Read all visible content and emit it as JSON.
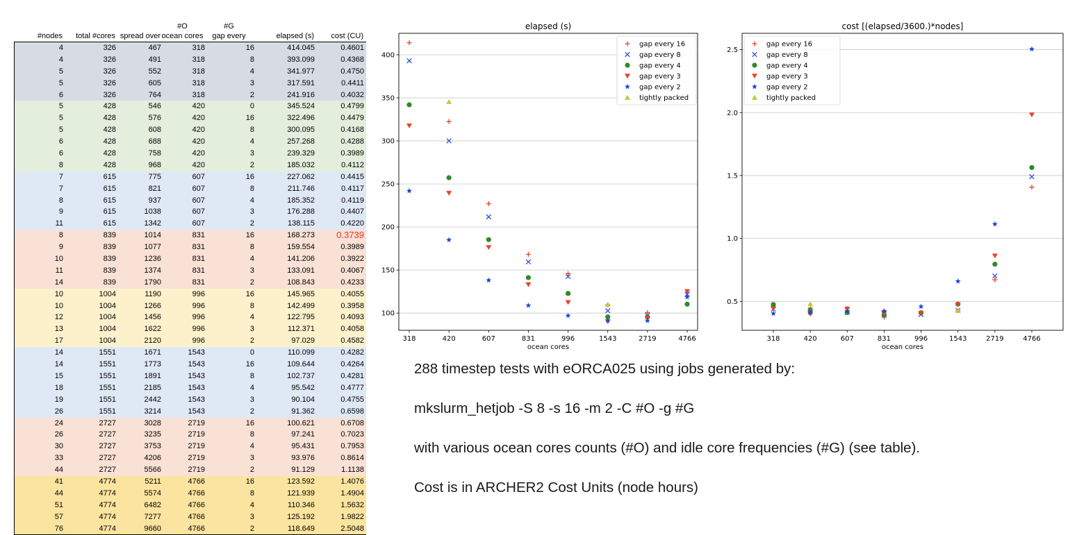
{
  "table": {
    "headers": [
      {
        "top": "",
        "bottom": "#nodes"
      },
      {
        "top": "",
        "bottom": "total #cores"
      },
      {
        "top": "",
        "bottom": "spread over"
      },
      {
        "top": "#O",
        "bottom": "ocean cores"
      },
      {
        "top": "#G",
        "bottom": "gap every"
      },
      {
        "top": "",
        "bottom": "elapsed (s)"
      },
      {
        "top": "",
        "bottom": "cost (CU)"
      }
    ],
    "group_colors": [
      "#d6dbe4",
      "#e3eedd",
      "#dfe9f5",
      "#f9e1d6",
      "#fdf1cc",
      "#dfe9f5",
      "#f9e1d6",
      "#fbe49f"
    ],
    "highlight_color": "#ea3323",
    "rows": [
      {
        "g": 0,
        "c": [
          "4",
          "326",
          "467",
          "318",
          "16",
          "414.045",
          "0.4601"
        ]
      },
      {
        "g": 0,
        "c": [
          "4",
          "326",
          "491",
          "318",
          "8",
          "393.099",
          "0.4368"
        ]
      },
      {
        "g": 0,
        "c": [
          "5",
          "326",
          "552",
          "318",
          "4",
          "341.977",
          "0.4750"
        ]
      },
      {
        "g": 0,
        "c": [
          "5",
          "326",
          "605",
          "318",
          "3",
          "317.591",
          "0.4411"
        ]
      },
      {
        "g": 0,
        "c": [
          "6",
          "326",
          "764",
          "318",
          "2",
          "241.916",
          "0.4032"
        ]
      },
      {
        "g": 1,
        "c": [
          "5",
          "428",
          "546",
          "420",
          "0",
          "345.524",
          "0.4799"
        ]
      },
      {
        "g": 1,
        "c": [
          "5",
          "428",
          "576",
          "420",
          "16",
          "322.496",
          "0.4479"
        ]
      },
      {
        "g": 1,
        "c": [
          "5",
          "428",
          "608",
          "420",
          "8",
          "300.095",
          "0.4168"
        ]
      },
      {
        "g": 1,
        "c": [
          "6",
          "428",
          "688",
          "420",
          "4",
          "257.268",
          "0.4288"
        ]
      },
      {
        "g": 1,
        "c": [
          "6",
          "428",
          "758",
          "420",
          "3",
          "239.329",
          "0.3989"
        ]
      },
      {
        "g": 1,
        "c": [
          "8",
          "428",
          "968",
          "420",
          "2",
          "185.032",
          "0.4112"
        ]
      },
      {
        "g": 2,
        "c": [
          "7",
          "615",
          "775",
          "607",
          "16",
          "227.062",
          "0.4415"
        ]
      },
      {
        "g": 2,
        "c": [
          "7",
          "615",
          "821",
          "607",
          "8",
          "211.746",
          "0.4117"
        ]
      },
      {
        "g": 2,
        "c": [
          "8",
          "615",
          "937",
          "607",
          "4",
          "185.352",
          "0.4119"
        ]
      },
      {
        "g": 2,
        "c": [
          "9",
          "615",
          "1038",
          "607",
          "3",
          "176.288",
          "0.4407"
        ]
      },
      {
        "g": 2,
        "c": [
          "11",
          "615",
          "1342",
          "607",
          "2",
          "138.115",
          "0.4220"
        ]
      },
      {
        "g": 3,
        "c": [
          "8",
          "839",
          "1014",
          "831",
          "16",
          "168.273",
          "0.3739"
        ],
        "hl": true
      },
      {
        "g": 3,
        "c": [
          "9",
          "839",
          "1077",
          "831",
          "8",
          "159.554",
          "0.3989"
        ]
      },
      {
        "g": 3,
        "c": [
          "10",
          "839",
          "1236",
          "831",
          "4",
          "141.206",
          "0.3922"
        ]
      },
      {
        "g": 3,
        "c": [
          "11",
          "839",
          "1374",
          "831",
          "3",
          "133.091",
          "0.4067"
        ]
      },
      {
        "g": 3,
        "c": [
          "14",
          "839",
          "1790",
          "831",
          "2",
          "108.843",
          "0.4233"
        ]
      },
      {
        "g": 4,
        "c": [
          "10",
          "1004",
          "1190",
          "996",
          "16",
          "145.965",
          "0.4055"
        ]
      },
      {
        "g": 4,
        "c": [
          "10",
          "1004",
          "1266",
          "996",
          "8",
          "142.499",
          "0.3958"
        ]
      },
      {
        "g": 4,
        "c": [
          "12",
          "1004",
          "1456",
          "996",
          "4",
          "122.795",
          "0.4093"
        ]
      },
      {
        "g": 4,
        "c": [
          "13",
          "1004",
          "1622",
          "996",
          "3",
          "112.371",
          "0.4058"
        ]
      },
      {
        "g": 4,
        "c": [
          "17",
          "1004",
          "2120",
          "996",
          "2",
          "97.029",
          "0.4582"
        ]
      },
      {
        "g": 5,
        "c": [
          "14",
          "1551",
          "1671",
          "1543",
          "0",
          "110.099",
          "0.4282"
        ]
      },
      {
        "g": 5,
        "c": [
          "14",
          "1551",
          "1773",
          "1543",
          "16",
          "109.644",
          "0.4264"
        ]
      },
      {
        "g": 5,
        "c": [
          "15",
          "1551",
          "1891",
          "1543",
          "8",
          "102.737",
          "0.4281"
        ]
      },
      {
        "g": 5,
        "c": [
          "18",
          "1551",
          "2185",
          "1543",
          "4",
          "95.542",
          "0.4777"
        ]
      },
      {
        "g": 5,
        "c": [
          "19",
          "1551",
          "2442",
          "1543",
          "3",
          "90.104",
          "0.4755"
        ]
      },
      {
        "g": 5,
        "c": [
          "26",
          "1551",
          "3214",
          "1543",
          "2",
          "91.362",
          "0.6598"
        ]
      },
      {
        "g": 6,
        "c": [
          "24",
          "2727",
          "3028",
          "2719",
          "16",
          "100.621",
          "0.6708"
        ]
      },
      {
        "g": 6,
        "c": [
          "26",
          "2727",
          "3235",
          "2719",
          "8",
          "97.241",
          "0.7023"
        ]
      },
      {
        "g": 6,
        "c": [
          "30",
          "2727",
          "3753",
          "2719",
          "4",
          "95.431",
          "0.7953"
        ]
      },
      {
        "g": 6,
        "c": [
          "33",
          "2727",
          "4206",
          "2719",
          "3",
          "93.976",
          "0.8614"
        ]
      },
      {
        "g": 6,
        "c": [
          "44",
          "2727",
          "5566",
          "2719",
          "2",
          "91.129",
          "1.1138"
        ]
      },
      {
        "g": 7,
        "c": [
          "41",
          "4774",
          "5211",
          "4766",
          "16",
          "123.592",
          "1.4076"
        ]
      },
      {
        "g": 7,
        "c": [
          "44",
          "4774",
          "5574",
          "4766",
          "8",
          "121.939",
          "1.4904"
        ]
      },
      {
        "g": 7,
        "c": [
          "51",
          "4774",
          "6482",
          "4766",
          "4",
          "110.346",
          "1.5632"
        ]
      },
      {
        "g": 7,
        "c": [
          "57",
          "4774",
          "7277",
          "4766",
          "3",
          "125.192",
          "1.9822"
        ]
      },
      {
        "g": 7,
        "c": [
          "76",
          "4774",
          "9660",
          "4766",
          "2",
          "118.649",
          "2.5048"
        ]
      }
    ]
  },
  "chart_data": [
    {
      "type": "scatter",
      "title": "elapsed (s)",
      "xlabel": "ocean cores",
      "ylabel": "",
      "categories": [
        "318",
        "420",
        "607",
        "831",
        "996",
        "1543",
        "2719",
        "4766"
      ],
      "ylim": [
        80,
        425
      ],
      "yticks": [
        100,
        150,
        200,
        250,
        300,
        350,
        400
      ],
      "grid": "horizontal",
      "legend": "top-right",
      "series": [
        {
          "name": "gap every 16",
          "marker": "plus",
          "color": "#e8412a",
          "values": [
            414.045,
            322.496,
            227.062,
            168.273,
            145.965,
            109.644,
            100.621,
            123.592
          ]
        },
        {
          "name": "gap every 8",
          "marker": "x",
          "color": "#2f4fd8",
          "values": [
            393.099,
            300.095,
            211.746,
            159.554,
            142.499,
            102.737,
            97.241,
            121.939
          ]
        },
        {
          "name": "gap every 4",
          "marker": "circle",
          "color": "#2f8a2a",
          "values": [
            341.977,
            257.268,
            185.352,
            141.206,
            122.795,
            95.542,
            95.431,
            110.346
          ]
        },
        {
          "name": "gap every 3",
          "marker": "triangle-down",
          "color": "#e8412a",
          "values": [
            317.591,
            239.329,
            176.288,
            133.091,
            112.371,
            90.104,
            93.976,
            125.192
          ]
        },
        {
          "name": "gap every 2",
          "marker": "star",
          "color": "#1f45d6",
          "values": [
            241.916,
            185.032,
            138.115,
            108.843,
            97.029,
            91.362,
            91.129,
            118.649
          ]
        },
        {
          "name": "tightly packed",
          "marker": "triangle-up",
          "color": "#c7c43a",
          "values": [
            null,
            345.524,
            null,
            null,
            null,
            110.099,
            null,
            null
          ]
        }
      ]
    },
    {
      "type": "scatter",
      "title": "cost [(elapsed/3600.)*nodes]",
      "xlabel": "ocean cores",
      "ylabel": "",
      "categories": [
        "318",
        "420",
        "607",
        "831",
        "996",
        "1543",
        "2719",
        "4766"
      ],
      "ylim": [
        0.27,
        2.63
      ],
      "yticks": [
        0.5,
        1.0,
        1.5,
        2.0,
        2.5
      ],
      "yticklabels": [
        "0.5",
        "1.0",
        "1.5",
        "2.0",
        "2.5"
      ],
      "grid": "horizontal",
      "legend": "top-left",
      "series": [
        {
          "name": "gap every 16",
          "marker": "plus",
          "color": "#e8412a",
          "values": [
            0.4601,
            0.4479,
            0.4415,
            0.3739,
            0.4055,
            0.4264,
            0.6708,
            1.4076
          ]
        },
        {
          "name": "gap every 8",
          "marker": "x",
          "color": "#2f4fd8",
          "values": [
            0.4368,
            0.4168,
            0.4117,
            0.3989,
            0.3958,
            0.4281,
            0.7023,
            1.4904
          ]
        },
        {
          "name": "gap every 4",
          "marker": "circle",
          "color": "#2f8a2a",
          "values": [
            0.475,
            0.4288,
            0.4119,
            0.3922,
            0.4093,
            0.4777,
            0.7953,
            1.5632
          ]
        },
        {
          "name": "gap every 3",
          "marker": "triangle-down",
          "color": "#e8412a",
          "values": [
            0.4411,
            0.3989,
            0.4407,
            0.4067,
            0.4058,
            0.4755,
            0.8614,
            1.9822
          ]
        },
        {
          "name": "gap every 2",
          "marker": "star",
          "color": "#1f45d6",
          "values": [
            0.4032,
            0.4112,
            0.422,
            0.4233,
            0.4582,
            0.6598,
            1.1138,
            2.5048
          ]
        },
        {
          "name": "tightly packed",
          "marker": "triangle-up",
          "color": "#c7c43a",
          "values": [
            null,
            0.4799,
            null,
            null,
            null,
            0.4282,
            null,
            null
          ]
        }
      ]
    }
  ],
  "notes": [
    "288 timestep tests with eORCA025 using jobs generated by:",
    "mkslurm_hetjob -S 8 -s 16 -m 2 -C #O -g #G",
    "with various ocean cores counts (#O) and idle core frequencies (#G) (see table).",
    "Cost is in ARCHER2 Cost Units (node hours)"
  ]
}
